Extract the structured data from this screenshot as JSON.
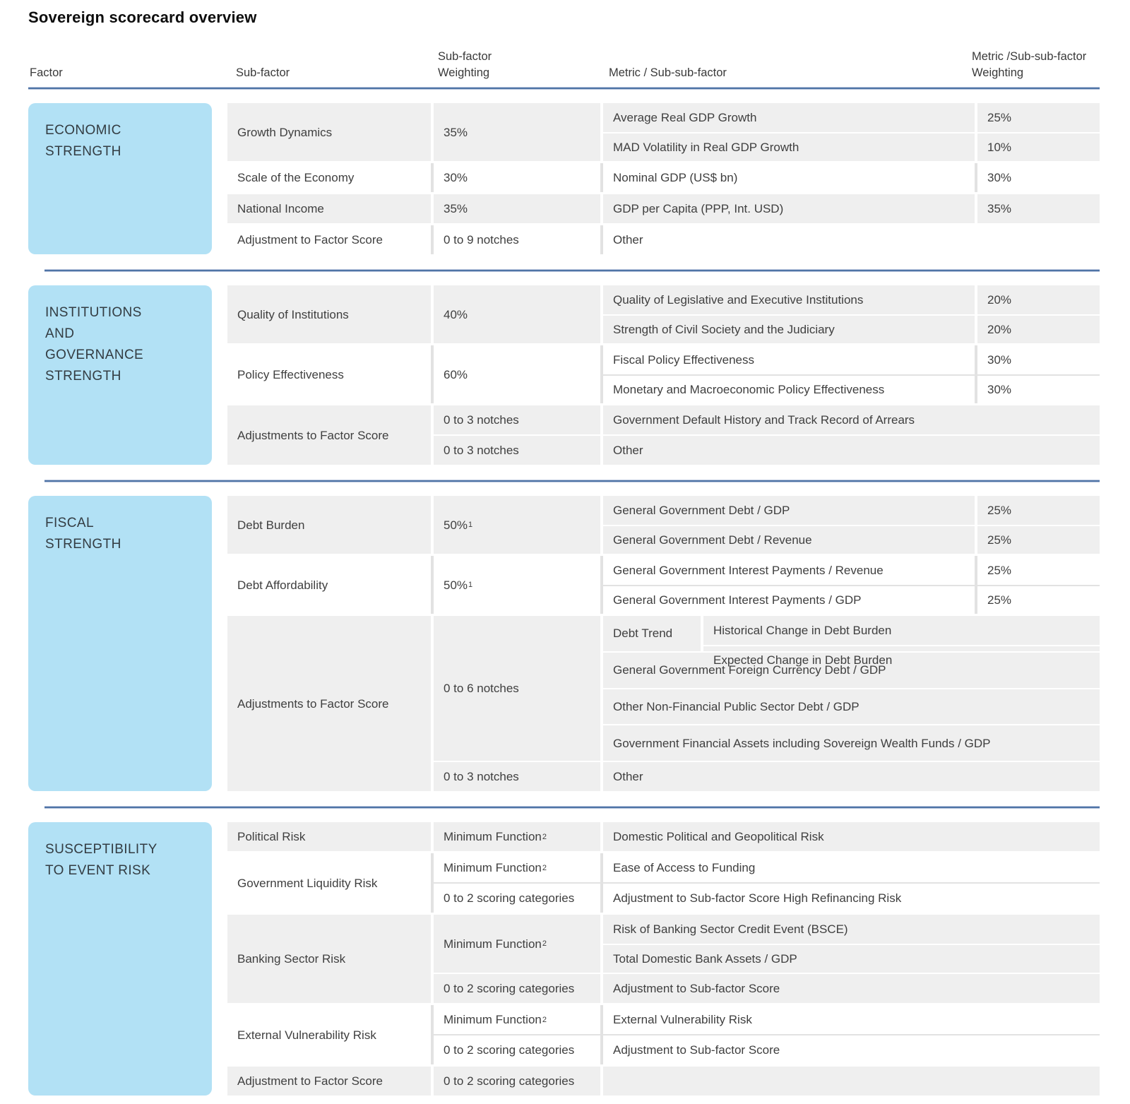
{
  "title": "Sovereign scorecard overview",
  "colors": {
    "factor_box_blue": "#b2e1f5",
    "rule_blue": "#4f74a6",
    "shaded_row_gray": "#efefef"
  },
  "table": {
    "columns": [
      {
        "label": "Factor"
      },
      {
        "label": "Sub-factor"
      },
      {
        "label": "Sub-factor\nWeighting"
      },
      {
        "label": "Metric / Sub-sub-factor"
      },
      {
        "label": "Metric /Sub-sub-factor\nWeighting"
      }
    ],
    "sections": [
      {
        "factor": "ECONOMIC\nSTRENGTH",
        "groups": [
          {
            "shaded": true,
            "subfactor": "Growth Dynamics",
            "rows": [
              {
                "weighting": "35%",
                "metrics": [
                  {
                    "label": "Average Real GDP Growth",
                    "weight": "25%"
                  },
                  {
                    "label": "MAD Volatility in Real GDP Growth",
                    "weight": "10%"
                  }
                ]
              }
            ]
          },
          {
            "shaded": false,
            "subfactor": "Scale of the Economy",
            "rows": [
              {
                "weighting": "30%",
                "metrics": [
                  {
                    "label": "Nominal GDP (US$ bn)",
                    "weight": "30%"
                  }
                ]
              }
            ]
          },
          {
            "shaded": true,
            "subfactor": "National Income",
            "rows": [
              {
                "weighting": "35%",
                "metrics": [
                  {
                    "label": "GDP per Capita (PPP, Int. USD)",
                    "weight": "35%"
                  }
                ]
              }
            ]
          },
          {
            "shaded": false,
            "subfactor": "Adjustment to Factor Score",
            "rows": [
              {
                "weighting": "0 to 9 notches",
                "metrics": [
                  {
                    "label": "Other",
                    "weight": ""
                  }
                ]
              }
            ]
          }
        ]
      },
      {
        "factor": "INSTITUTIONS\nAND\nGOVERNANCE\nSTRENGTH",
        "groups": [
          {
            "shaded": true,
            "subfactor": "Quality of Institutions",
            "rows": [
              {
                "weighting": "40%",
                "metrics": [
                  {
                    "label": "Quality of Legislative and Executive Institutions",
                    "weight": "20%"
                  },
                  {
                    "label": "Strength of Civil Society and the Judiciary",
                    "weight": "20%"
                  }
                ]
              }
            ]
          },
          {
            "shaded": false,
            "subfactor": "Policy Effectiveness",
            "rows": [
              {
                "weighting": "60%",
                "metrics": [
                  {
                    "label": "Fiscal Policy Effectiveness",
                    "weight": "30%"
                  },
                  {
                    "label": "Monetary and Macroeconomic Policy Effectiveness",
                    "weight": "30%"
                  }
                ]
              }
            ]
          },
          {
            "shaded": true,
            "subfactor": "Adjustments to Factor Score",
            "rows": [
              {
                "weighting": "0 to 3 notches",
                "metrics": [
                  {
                    "label": "Government Default History and Track Record of Arrears",
                    "weight": ""
                  }
                ]
              },
              {
                "weighting": "0 to 3 notches",
                "metrics": [
                  {
                    "label": "Other",
                    "weight": ""
                  }
                ]
              }
            ]
          }
        ]
      },
      {
        "factor": "FISCAL\nSTRENGTH",
        "groups": [
          {
            "shaded": true,
            "subfactor": "Debt Burden",
            "rows": [
              {
                "weighting": "50%",
                "sup": "1",
                "metrics": [
                  {
                    "label": "General Government Debt / GDP",
                    "weight": "25%"
                  },
                  {
                    "label": "General Government Debt / Revenue",
                    "weight": "25%"
                  }
                ]
              }
            ]
          },
          {
            "shaded": false,
            "subfactor": "Debt Affordability",
            "rows": [
              {
                "weighting": "50%",
                "sup": "1",
                "metrics": [
                  {
                    "label": "General Government Interest Payments / Revenue",
                    "weight": "25%"
                  },
                  {
                    "label": "General Government Interest Payments / GDP",
                    "weight": "25%"
                  }
                ]
              }
            ]
          },
          {
            "shaded": true,
            "subfactor": "Adjustments to Factor Score",
            "rows": [
              {
                "weighting": "0 to 6 notches",
                "metrics": [
                  {
                    "label": "Debt Trend",
                    "children": [
                      "Historical Change in Debt Burden",
                      "Expected Change in Debt Burden"
                    ]
                  },
                  {
                    "label": "General Government Foreign Currency Debt / GDP",
                    "weight": ""
                  },
                  {
                    "label": "Other Non-Financial Public Sector Debt / GDP",
                    "weight": ""
                  },
                  {
                    "label": "Government Financial Assets including Sovereign Wealth Funds / GDP",
                    "weight": ""
                  }
                ]
              },
              {
                "weighting": "0 to 3 notches",
                "metrics": [
                  {
                    "label": "Other",
                    "weight": ""
                  }
                ]
              }
            ]
          }
        ]
      },
      {
        "factor": "SUSCEPTIBILITY\nTO EVENT RISK",
        "groups": [
          {
            "shaded": true,
            "subfactor": "Political Risk",
            "rows": [
              {
                "weighting": "Minimum Function",
                "sup": "2",
                "metrics": [
                  {
                    "label": "Domestic Political and Geopolitical Risk",
                    "weight": ""
                  }
                ]
              }
            ]
          },
          {
            "shaded": false,
            "subfactor": "Government Liquidity Risk",
            "rows": [
              {
                "weighting": "Minimum Function",
                "sup": "2",
                "metrics": [
                  {
                    "label": "Ease of Access to Funding",
                    "weight": ""
                  }
                ]
              },
              {
                "weighting": "0 to 2 scoring categories",
                "metrics": [
                  {
                    "label": "Adjustment to Sub-factor Score High Refinancing Risk",
                    "weight": ""
                  }
                ]
              }
            ]
          },
          {
            "shaded": true,
            "subfactor": "Banking Sector Risk",
            "rows": [
              {
                "weighting": "Minimum Function",
                "sup": "2",
                "metrics": [
                  {
                    "label": "Risk of Banking Sector Credit Event (BSCE)",
                    "weight": ""
                  },
                  {
                    "label": "Total Domestic Bank Assets / GDP",
                    "weight": ""
                  }
                ]
              },
              {
                "weighting": "0 to 2 scoring categories",
                "metrics": [
                  {
                    "label": "Adjustment to Sub-factor Score",
                    "weight": ""
                  }
                ]
              }
            ]
          },
          {
            "shaded": false,
            "subfactor": "External Vulnerability Risk",
            "rows": [
              {
                "weighting": "Minimum Function",
                "sup": "2",
                "metrics": [
                  {
                    "label": "External Vulnerability Risk",
                    "weight": ""
                  }
                ]
              },
              {
                "weighting": "0 to 2 scoring categories",
                "metrics": [
                  {
                    "label": "Adjustment to Sub-factor Score",
                    "weight": ""
                  }
                ]
              }
            ]
          },
          {
            "shaded": true,
            "subfactor": "Adjustment to Factor Score",
            "rows": [
              {
                "weighting": "0 to 2 scoring categories",
                "metrics": [
                  {
                    "label": "",
                    "weight": ""
                  }
                ]
              }
            ]
          }
        ]
      }
    ]
  }
}
